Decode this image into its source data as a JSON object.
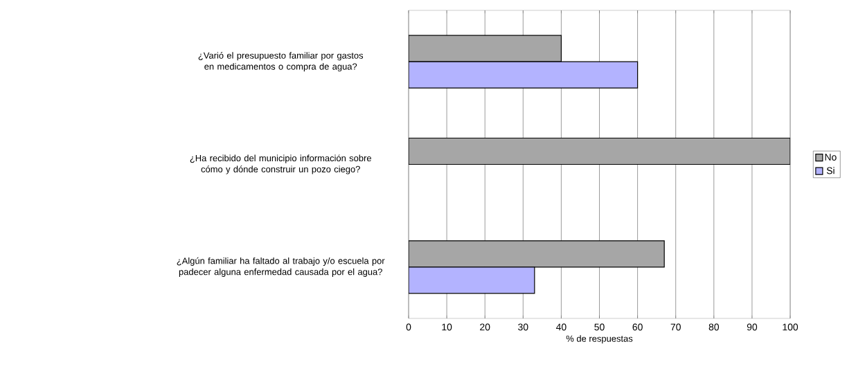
{
  "chart_data": {
    "type": "bar",
    "orientation": "horizontal",
    "categories": [
      "¿Varió el presupuesto familiar por gastos en medicamentos o compra de agua?",
      "¿Ha recibido del municipio información sobre cómo y dónde construir un pozo ciego?",
      "¿Algún familiar ha faltado al trabajo y/o escuela por padecer alguna enfermedad causada por el agua?"
    ],
    "series": [
      {
        "name": "No",
        "color": "#a6a6a6",
        "values": [
          40,
          100,
          67
        ]
      },
      {
        "name": "Si",
        "color": "#b3b3ff",
        "values": [
          60,
          null,
          33
        ]
      }
    ],
    "xlabel": "% de respuestas",
    "xlim": [
      0,
      100
    ],
    "xticks": [
      0,
      10,
      20,
      30,
      40,
      50,
      60,
      70,
      80,
      90,
      100
    ],
    "grid": "x",
    "legend": "right"
  }
}
